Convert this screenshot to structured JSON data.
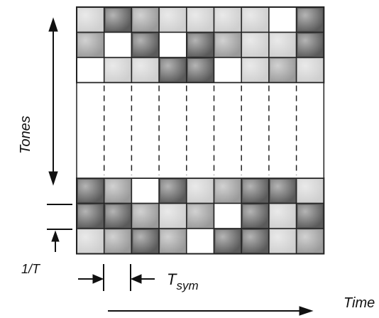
{
  "labels": {
    "tones": "Tones",
    "one_over_t": "1/T",
    "t_sym_main": "T",
    "t_sym_sub": "sym",
    "time": "Time"
  },
  "grid": {
    "columns": 9,
    "top_rows": [
      [
        "light",
        "dark",
        "mid",
        "light",
        "light",
        "light",
        "light",
        "white",
        "dark"
      ],
      [
        "mid",
        "white",
        "dark",
        "white",
        "dark",
        "mid",
        "light",
        "light",
        "dark"
      ],
      [
        "white",
        "light",
        "light",
        "dark",
        "dark",
        "white",
        "light",
        "mid",
        "light"
      ]
    ],
    "bottom_rows": [
      [
        "dark",
        "mid",
        "white",
        "dark",
        "light",
        "mid",
        "dark",
        "dark",
        "light"
      ],
      [
        "dark",
        "dark",
        "mid",
        "light",
        "mid",
        "white",
        "dark",
        "light",
        "dark"
      ],
      [
        "light",
        "mid",
        "dark",
        "mid",
        "white",
        "dark",
        "dark",
        "light",
        "mid"
      ]
    ]
  },
  "colors": {
    "white": "#ffffff",
    "light": "#cfcfcf",
    "mid": "#9a9a9a",
    "dark": "#5a5a5a",
    "line": "#222222"
  }
}
